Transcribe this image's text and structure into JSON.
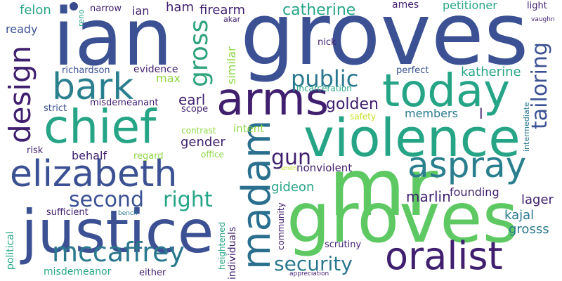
{
  "words": [
    {
      "text": "ian",
      "color": "#3b5193"
    },
    {
      "text": "groves",
      "color": "#3b5193"
    },
    {
      "text": "groves",
      "color": "#5ec962"
    },
    {
      "text": "mr",
      "color": "#5ec962"
    },
    {
      "text": "violence",
      "color": "#26a586"
    },
    {
      "text": "justice",
      "color": "#3b5193"
    },
    {
      "text": "chief",
      "color": "#26a586"
    },
    {
      "text": "today",
      "color": "#26a586"
    },
    {
      "text": "arms",
      "color": "#3f1f6e"
    },
    {
      "text": "elizabeth",
      "color": "#3b5193"
    },
    {
      "text": "oralist",
      "color": "#3f1f6e"
    },
    {
      "text": "madam",
      "color": "#2a6f8e"
    },
    {
      "text": "aspray",
      "color": "#2a7f8e"
    },
    {
      "text": "bark",
      "color": "#2a7f8e"
    },
    {
      "text": "mccaffrey",
      "color": "#2a788e"
    },
    {
      "text": "design",
      "color": "#3f1f6e"
    },
    {
      "text": "gross",
      "color": "#2fa37a"
    },
    {
      "text": "tailoring",
      "color": "#3b5193"
    },
    {
      "text": "public",
      "color": "#2a788e"
    },
    {
      "text": "second",
      "color": "#3b5193"
    },
    {
      "text": "right",
      "color": "#26a586"
    },
    {
      "text": "security",
      "color": "#2a788e"
    },
    {
      "text": "gun",
      "color": "#3f1f6e"
    },
    {
      "text": "catherine",
      "color": "#26a586"
    },
    {
      "text": "golden",
      "color": "#3f1f6e"
    },
    {
      "text": "firearm",
      "color": "#3f1f6e"
    },
    {
      "text": "katherine",
      "color": "#26a586"
    },
    {
      "text": "marlin",
      "color": "#3f1f6e"
    },
    {
      "text": "gender",
      "color": "#3f1f6e"
    },
    {
      "text": "earl",
      "color": "#3f1f6e"
    },
    {
      "text": "ham",
      "color": "#3f1f6e"
    },
    {
      "text": "ian",
      "color": "#3f1f6e"
    },
    {
      "text": "felon",
      "color": "#26a586"
    },
    {
      "text": "ready",
      "color": "#3b5193"
    },
    {
      "text": "petitioner",
      "color": "#26a586"
    },
    {
      "text": "lager",
      "color": "#3f1f6e"
    },
    {
      "text": "kajal",
      "color": "#2a788e"
    },
    {
      "text": "grosss",
      "color": "#2a788e"
    },
    {
      "text": "founding",
      "color": "#3f1f6e"
    },
    {
      "text": "gideon",
      "color": "#26a586"
    },
    {
      "text": "nonviolent",
      "color": "#3f1f6e"
    },
    {
      "text": "members",
      "color": "#2a788e"
    },
    {
      "text": "intent",
      "color": "#8fd744"
    },
    {
      "text": "behalf",
      "color": "#3f1f6e"
    },
    {
      "text": "similar",
      "color": "#8fd744"
    },
    {
      "text": "max",
      "color": "#8fd744"
    },
    {
      "text": "l",
      "color": "#3f1f6e"
    },
    {
      "text": "narrow",
      "color": "#3f1f6e"
    },
    {
      "text": "evidence",
      "color": "#3f1f6e"
    },
    {
      "text": "richardson",
      "color": "#3b5193"
    },
    {
      "text": "ames",
      "color": "#3f1f6e"
    },
    {
      "text": "light",
      "color": "#3f1f6e"
    },
    {
      "text": "nick",
      "color": "#3f1f6e"
    },
    {
      "text": "perfect",
      "color": "#3b5193"
    },
    {
      "text": "incarceration",
      "color": "#26a586"
    },
    {
      "text": "misdemeanant",
      "color": "#3f1f6e"
    },
    {
      "text": "scope",
      "color": "#3f1f6e"
    },
    {
      "text": "strict",
      "color": "#3b5193"
    },
    {
      "text": "contrast",
      "color": "#8fd744"
    },
    {
      "text": "safety",
      "color": "#c7e020"
    },
    {
      "text": "risk",
      "color": "#3f1f6e"
    },
    {
      "text": "regard",
      "color": "#8fd744"
    },
    {
      "text": "office",
      "color": "#8fd744"
    },
    {
      "text": "sufficient",
      "color": "#3f1f6e"
    },
    {
      "text": "political",
      "color": "#26a586"
    },
    {
      "text": "bench",
      "color": "#2a788e"
    },
    {
      "text": "heightened",
      "color": "#26a586"
    },
    {
      "text": "individuals",
      "color": "#3f1f6e"
    },
    {
      "text": "community",
      "color": "#3f1f6e"
    },
    {
      "text": "scrutiny",
      "color": "#3f1f6e"
    },
    {
      "text": "misdemeanor",
      "color": "#26a586"
    },
    {
      "text": "either",
      "color": "#3f1f6e"
    },
    {
      "text": "appreciation",
      "color": "#3f1f6e"
    },
    {
      "text": "reno",
      "color": "#26a586"
    },
    {
      "text": "akar",
      "color": "#3f1f6e"
    },
    {
      "text": "vaughn",
      "color": "#3f1f6e"
    },
    {
      "text": "intermediate",
      "color": "#2a788e"
    },
    {
      "text": "smith",
      "color": "#c7e020"
    }
  ]
}
